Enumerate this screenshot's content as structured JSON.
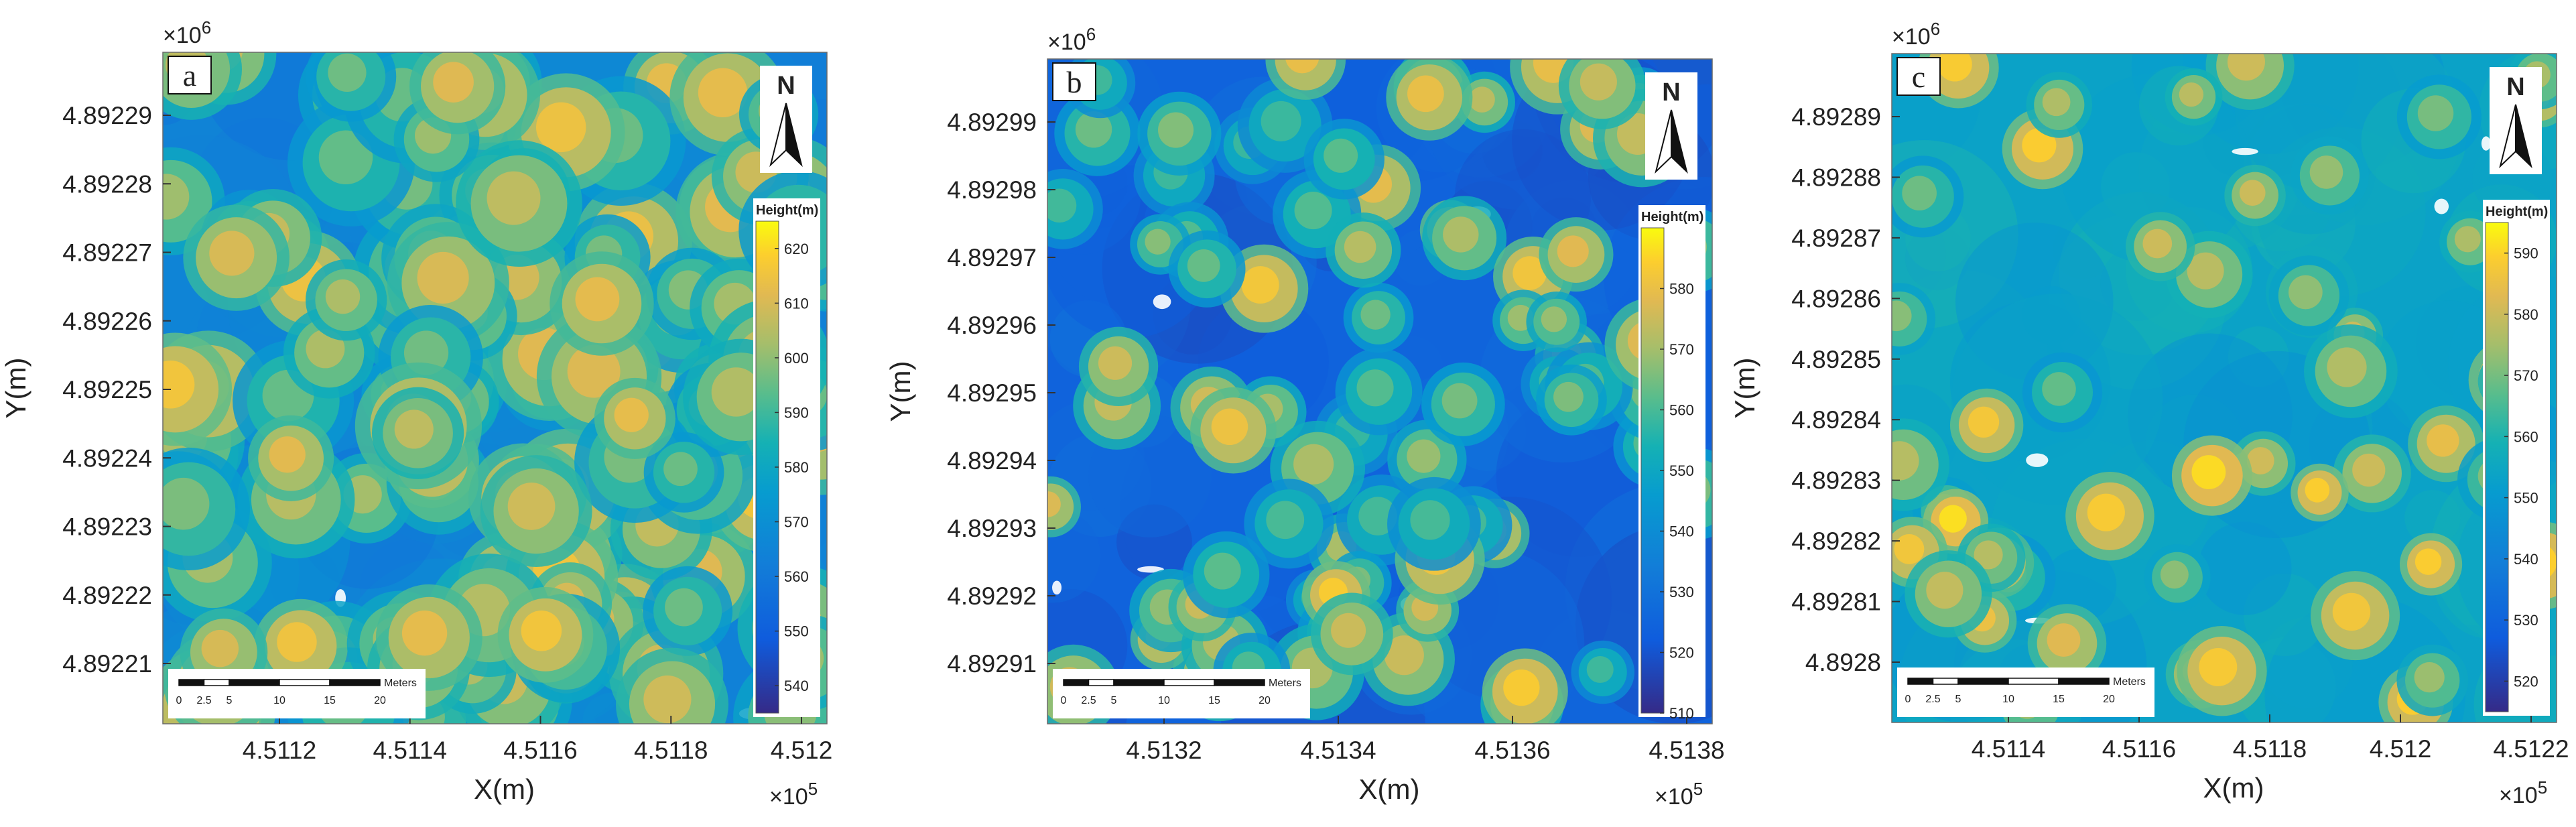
{
  "colors": {
    "ground": "#3a66e6",
    "canopy": "#e9b53b",
    "mid": "#2ab2b5",
    "frame": "#222222"
  },
  "chart_data": [
    {
      "type": "heatmap",
      "panel_label": "a",
      "title": "",
      "xlabel": "X(m)",
      "ylabel": "Y(m)",
      "x_multiplier": "×10",
      "x_multiplier_exp": "5",
      "y_multiplier": "×10",
      "y_multiplier_exp": "6",
      "xticks": [
        "4.5112",
        "4.5114",
        "4.5116",
        "4.5118",
        "4.512"
      ],
      "yticks": [
        "4.89229",
        "4.89228",
        "4.89227",
        "4.89226",
        "4.89225",
        "4.89224",
        "4.89223",
        "4.89222",
        "4.89221"
      ],
      "colorbar_title": "Height(m)",
      "colorbar_range": [
        535,
        625
      ],
      "colorbar_ticks": [
        "620",
        "610",
        "600",
        "590",
        "580",
        "570",
        "560",
        "550",
        "540"
      ],
      "north_label": "N",
      "scalebar_unit": "Meters",
      "scalebar_ticks": [
        "0",
        "2.5",
        "5",
        "10",
        "15",
        "20"
      ],
      "description_values": {
        "canopy_cover": "dense",
        "ground_level_m": 545,
        "canopy_top_m": 615
      }
    },
    {
      "type": "heatmap",
      "panel_label": "b",
      "title": "",
      "xlabel": "X(m)",
      "ylabel": "Y(m)",
      "x_multiplier": "×10",
      "x_multiplier_exp": "5",
      "y_multiplier": "×10",
      "y_multiplier_exp": "6",
      "xticks": [
        "4.5132",
        "4.5134",
        "4.5136",
        "4.5138"
      ],
      "yticks": [
        "4.89299",
        "4.89298",
        "4.89297",
        "4.89296",
        "4.89295",
        "4.89294",
        "4.89293",
        "4.89292",
        "4.89291"
      ],
      "colorbar_title": "Height(m)",
      "colorbar_range": [
        510,
        590
      ],
      "colorbar_ticks": [
        "580",
        "570",
        "560",
        "550",
        "540",
        "530",
        "520",
        "510"
      ],
      "north_label": "N",
      "scalebar_unit": "Meters",
      "scalebar_ticks": [
        "0",
        "2.5",
        "5",
        "10",
        "15",
        "20"
      ],
      "description_values": {
        "canopy_cover": "medium",
        "ground_level_m": 525,
        "canopy_top_m": 575
      }
    },
    {
      "type": "heatmap",
      "panel_label": "c",
      "title": "",
      "xlabel": "X(m)",
      "ylabel": "Y(m)",
      "x_multiplier": "×10",
      "x_multiplier_exp": "5",
      "y_multiplier": "×10",
      "y_multiplier_exp": "6",
      "xticks": [
        "4.5114",
        "4.5116",
        "4.5118",
        "4.512",
        "4.5122"
      ],
      "yticks": [
        "4.89289",
        "4.89288",
        "4.89287",
        "4.89286",
        "4.89285",
        "4.89284",
        "4.89283",
        "4.89282",
        "4.89281",
        "4.8928"
      ],
      "colorbar_title": "Height(m)",
      "colorbar_range": [
        515,
        595
      ],
      "colorbar_ticks": [
        "590",
        "580",
        "570",
        "560",
        "550",
        "540",
        "530",
        "520"
      ],
      "north_label": "N",
      "scalebar_unit": "Meters",
      "scalebar_ticks": [
        "0",
        "2.5",
        "5",
        "10",
        "15",
        "20"
      ],
      "description_values": {
        "canopy_cover": "sparse",
        "ground_level_m": 550,
        "canopy_top_m": 585
      }
    }
  ]
}
